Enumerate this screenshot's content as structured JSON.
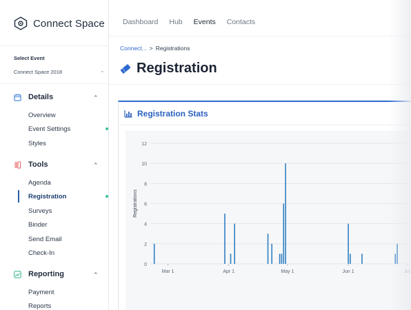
{
  "app": {
    "name": "Connect Space"
  },
  "sidebar": {
    "select_label": "Select Event",
    "select_value": "Connect Space 2018",
    "sections": [
      {
        "title": "Details",
        "icon": "calendar-icon",
        "items": [
          "Overview",
          "Event Settings",
          "Styles"
        ]
      },
      {
        "title": "Tools",
        "icon": "tools-icon",
        "items": [
          "Agenda",
          "Registration",
          "Surveys",
          "Binder",
          "Send Email",
          "Check-In"
        ]
      },
      {
        "title": "Reporting",
        "icon": "trend-icon",
        "items": [
          "Payment",
          "Reports"
        ]
      }
    ],
    "active_item": "Registration"
  },
  "topnav": {
    "items": [
      "Dashboard",
      "Hub",
      "Events",
      "Contacts"
    ],
    "active": "Events"
  },
  "breadcrumb": {
    "parent": "Connect...",
    "separator": ">",
    "current": "Registrations"
  },
  "page": {
    "title": "Registration"
  },
  "card": {
    "title": "Registration Stats"
  },
  "colors": {
    "accent": "#2f6ad1",
    "bar": "#2f7fc1",
    "status_dot": "#3ac09a"
  },
  "chart_data": {
    "type": "bar",
    "title": "",
    "xlabel": "",
    "ylabel": "Registrations",
    "ylim": [
      0,
      12
    ],
    "yticks": [
      0,
      2,
      4,
      6,
      8,
      10,
      12
    ],
    "xticks": [
      "Mar 1",
      "Apr 1",
      "May 1",
      "Jun 1",
      "Jul"
    ],
    "x_domain": [
      "2018-02-20",
      "2018-07-03"
    ],
    "x": [
      "2018-02-22",
      "2018-03-30",
      "2018-04-02",
      "2018-04-04",
      "2018-04-21",
      "2018-04-23",
      "2018-04-27",
      "2018-04-28",
      "2018-04-29",
      "2018-04-30",
      "2018-06-01",
      "2018-06-02",
      "2018-06-08",
      "2018-06-25",
      "2018-06-26"
    ],
    "values": [
      2,
      5,
      1,
      4,
      3,
      2,
      1,
      1,
      6,
      10,
      4,
      1,
      1,
      1,
      2
    ]
  }
}
